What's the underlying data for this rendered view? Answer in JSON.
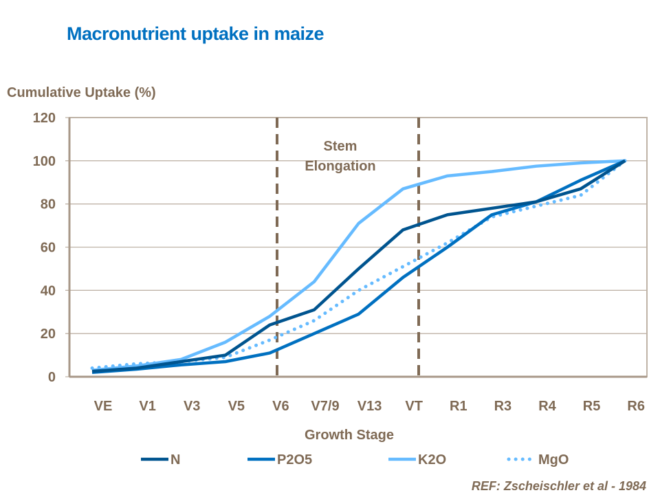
{
  "chart_data": {
    "type": "line",
    "title": "Macronutrient uptake in maize",
    "xlabel": "Growth Stage",
    "ylabel": "Cumulative Uptake (%)",
    "ylim": [
      0,
      120
    ],
    "yticks": [
      0,
      20,
      40,
      60,
      80,
      100,
      120
    ],
    "grid": true,
    "legend_position": "bottom",
    "categories": [
      "VE",
      "V1",
      "V3",
      "V5",
      "V6",
      "V7/9",
      "V13",
      "VT",
      "R1",
      "R3",
      "R4",
      "R5",
      "R6"
    ],
    "series": [
      {
        "name": "N",
        "color": "#00548F",
        "style": "solid",
        "values": [
          2.5,
          4,
          7,
          10,
          24,
          31,
          50,
          68,
          75,
          78,
          81,
          87,
          100
        ]
      },
      {
        "name": "P2O5",
        "color": "#0070C0",
        "style": "solid",
        "values": [
          2,
          3.5,
          5.5,
          7,
          11,
          20,
          29,
          46,
          60,
          75,
          81,
          91,
          100
        ]
      },
      {
        "name": "K2O",
        "color": "#66BBFF",
        "style": "solid",
        "values": [
          3,
          5,
          8,
          16,
          28,
          44,
          71,
          87,
          93,
          95,
          97.5,
          99,
          100
        ]
      },
      {
        "name": "MgO",
        "color": "#66BBFF",
        "style": "dotted",
        "values": [
          4,
          6,
          7,
          9,
          17,
          26,
          40,
          51,
          62,
          74,
          79,
          84,
          100
        ]
      }
    ],
    "annotations": [
      {
        "text_line1": "Stem",
        "text_line2": "Elongation"
      }
    ],
    "phase_boundaries": [
      "V6",
      "VT"
    ]
  },
  "reference": "REF: Zscheischler et al - 1984",
  "colors": {
    "text": "#7F6A55",
    "title": "#0070C0",
    "grid": "#BFB3A7"
  }
}
